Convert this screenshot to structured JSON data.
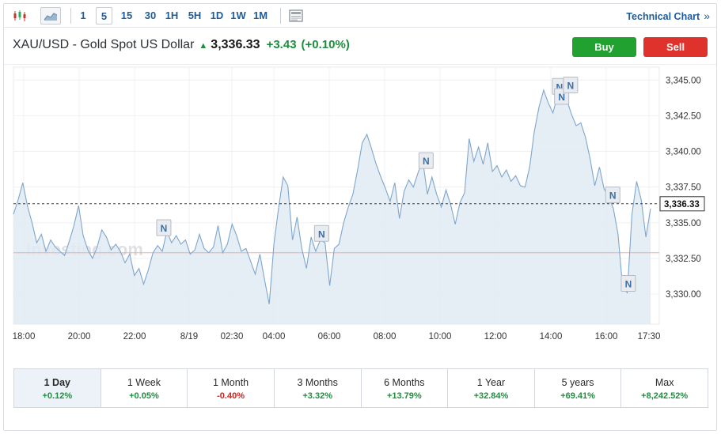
{
  "toolbar": {
    "timeframes": [
      "1",
      "5",
      "15",
      "30",
      "1H",
      "5H",
      "1D",
      "1W",
      "1M"
    ],
    "active_timeframe": "5",
    "technical_chart_label": "Technical Chart",
    "technical_chart_chevron": "»"
  },
  "quote": {
    "name": "XAU/USD - Gold Spot US Dollar",
    "price": "3,336.33",
    "change": "+3.43",
    "change_pct": "(+0.10%)"
  },
  "buttons": {
    "buy": "Buy",
    "sell": "Sell"
  },
  "watermark": "Investing.com",
  "chart_data": {
    "type": "area",
    "x_tick_labels": [
      "18:00",
      "20:00",
      "22:00",
      "8/19",
      "02:30",
      "04:00",
      "06:00",
      "08:00",
      "10:00",
      "12:00",
      "14:00",
      "16:00",
      "17:30"
    ],
    "y_tick_labels": [
      "3,345.00",
      "3,342.50",
      "3,340.00",
      "3,337.50",
      "3,335.00",
      "3,332.50",
      "3,330.00"
    ],
    "ylim": [
      3327.9,
      3345.9
    ],
    "last_price": 3336.33,
    "last_price_label": "3,336.33",
    "previous_close": 3332.9,
    "news_marker_label": "N",
    "news_markers": [
      {
        "x": "23:15",
        "y": 3334.6
      },
      {
        "x": "05:10",
        "y": 3334.2
      },
      {
        "x": "09:05",
        "y": 3339.3
      },
      {
        "x": "14:05",
        "y": 3344.5
      },
      {
        "x": "14:10",
        "y": 3343.8
      },
      {
        "x": "14:30",
        "y": 3344.6
      },
      {
        "x": "16:05",
        "y": 3336.9
      },
      {
        "x": "16:40",
        "y": 3330.7
      }
    ],
    "series": [
      {
        "values": [
          [
            0,
            3335.6
          ],
          [
            1,
            3336.6
          ],
          [
            2,
            3337.8
          ],
          [
            3,
            3336.2
          ],
          [
            4,
            3335.0
          ],
          [
            5,
            3333.6
          ],
          [
            6,
            3334.2
          ],
          [
            7,
            3333.0
          ],
          [
            8,
            3333.8
          ],
          [
            9,
            3333.3
          ],
          [
            10,
            3333.0
          ],
          [
            11,
            3332.7
          ],
          [
            12,
            3333.7
          ],
          [
            13,
            3334.8
          ],
          [
            14,
            3336.2
          ],
          [
            15,
            3334.1
          ],
          [
            16,
            3333.1
          ],
          [
            17,
            3332.5
          ],
          [
            18,
            3333.3
          ],
          [
            19,
            3334.5
          ],
          [
            20,
            3334.0
          ],
          [
            21,
            3333.1
          ],
          [
            22,
            3333.5
          ],
          [
            23,
            3333.0
          ],
          [
            24,
            3332.2
          ],
          [
            25,
            3332.8
          ],
          [
            26,
            3331.3
          ],
          [
            27,
            3331.8
          ],
          [
            28,
            3330.7
          ],
          [
            29,
            3331.7
          ],
          [
            30,
            3332.9
          ],
          [
            31,
            3333.4
          ],
          [
            32,
            3333.0
          ],
          [
            33,
            3334.4
          ],
          [
            34,
            3333.6
          ],
          [
            35,
            3334.1
          ],
          [
            36,
            3333.5
          ],
          [
            37,
            3333.8
          ],
          [
            38,
            3332.8
          ],
          [
            39,
            3333.1
          ],
          [
            40,
            3334.2
          ],
          [
            41,
            3333.2
          ],
          [
            42,
            3332.9
          ],
          [
            43,
            3333.3
          ],
          [
            44,
            3334.8
          ],
          [
            45,
            3332.9
          ],
          [
            46,
            3333.5
          ],
          [
            47,
            3334.9
          ],
          [
            48,
            3334.1
          ],
          [
            49,
            3333.0
          ],
          [
            50,
            3333.2
          ],
          [
            51,
            3332.3
          ],
          [
            52,
            3331.4
          ],
          [
            53,
            3332.8
          ],
          [
            54,
            3331.0
          ],
          [
            55,
            3329.3
          ],
          [
            56,
            3333.5
          ],
          [
            57,
            3336.0
          ],
          [
            58,
            3338.2
          ],
          [
            59,
            3337.6
          ],
          [
            60,
            3333.8
          ],
          [
            61,
            3335.4
          ],
          [
            62,
            3333.2
          ],
          [
            63,
            3331.8
          ],
          [
            64,
            3334.0
          ],
          [
            65,
            3333.0
          ],
          [
            66,
            3333.8
          ],
          [
            67,
            3333.6
          ],
          [
            68,
            3330.6
          ],
          [
            69,
            3333.2
          ],
          [
            70,
            3333.5
          ],
          [
            71,
            3335.0
          ],
          [
            72,
            3336.1
          ],
          [
            73,
            3337.0
          ],
          [
            74,
            3338.7
          ],
          [
            75,
            3340.6
          ],
          [
            76,
            3341.2
          ],
          [
            77,
            3340.2
          ],
          [
            78,
            3339.1
          ],
          [
            79,
            3338.2
          ],
          [
            80,
            3337.4
          ],
          [
            81,
            3336.5
          ],
          [
            82,
            3337.8
          ],
          [
            83,
            3335.3
          ],
          [
            84,
            3337.2
          ],
          [
            85,
            3338.0
          ],
          [
            86,
            3337.5
          ],
          [
            87,
            3338.5
          ],
          [
            88,
            3339.4
          ],
          [
            89,
            3337.0
          ],
          [
            90,
            3338.2
          ],
          [
            91,
            3337.0
          ],
          [
            92,
            3336.1
          ],
          [
            93,
            3337.3
          ],
          [
            94,
            3336.3
          ],
          [
            95,
            3334.9
          ],
          [
            96,
            3336.4
          ],
          [
            97,
            3337.1
          ],
          [
            98,
            3340.9
          ],
          [
            99,
            3339.3
          ],
          [
            100,
            3340.3
          ],
          [
            101,
            3339.1
          ],
          [
            102,
            3340.6
          ],
          [
            103,
            3338.6
          ],
          [
            104,
            3339.0
          ],
          [
            105,
            3338.2
          ],
          [
            106,
            3338.7
          ],
          [
            107,
            3337.9
          ],
          [
            108,
            3338.3
          ],
          [
            109,
            3337.6
          ],
          [
            110,
            3337.5
          ],
          [
            111,
            3338.9
          ],
          [
            112,
            3341.4
          ],
          [
            113,
            3343.1
          ],
          [
            114,
            3344.3
          ],
          [
            115,
            3343.4
          ],
          [
            116,
            3342.7
          ],
          [
            117,
            3343.9
          ],
          [
            118,
            3344.6
          ],
          [
            119,
            3343.6
          ],
          [
            120,
            3342.6
          ],
          [
            121,
            3341.8
          ],
          [
            122,
            3342.0
          ],
          [
            123,
            3341.0
          ],
          [
            124,
            3339.5
          ],
          [
            125,
            3337.6
          ],
          [
            126,
            3338.9
          ],
          [
            127,
            3337.4
          ],
          [
            128,
            3336.8
          ],
          [
            129,
            3336.0
          ],
          [
            130,
            3334.2
          ],
          [
            131,
            3330.5
          ],
          [
            132,
            3330.1
          ],
          [
            133,
            3335.6
          ],
          [
            134,
            3337.9
          ],
          [
            135,
            3336.6
          ],
          [
            136,
            3334.0
          ],
          [
            137,
            3336.0
          ]
        ]
      }
    ]
  },
  "periods": [
    {
      "label": "1 Day",
      "change": "+0.12%",
      "tone": "pos"
    },
    {
      "label": "1 Week",
      "change": "+0.05%",
      "tone": "pos"
    },
    {
      "label": "1 Month",
      "change": "-0.40%",
      "tone": "neg"
    },
    {
      "label": "3 Months",
      "change": "+3.32%",
      "tone": "pos"
    },
    {
      "label": "6 Months",
      "change": "+13.79%",
      "tone": "pos"
    },
    {
      "label": "1 Year",
      "change": "+32.84%",
      "tone": "pos"
    },
    {
      "label": "5 years",
      "change": "+69.41%",
      "tone": "pos"
    },
    {
      "label": "Max",
      "change": "+8,242.52%",
      "tone": "pos"
    }
  ],
  "active_period": "1 Day",
  "colors": {
    "line": "#7fa6cc",
    "fill": "#e1eaf3",
    "previous_close_line": "#f0a9a9",
    "accent_link": "#1f5c99",
    "buy": "#21a130",
    "sell": "#e0322c",
    "positive": "#1e8e3e",
    "negative": "#d91e18"
  }
}
